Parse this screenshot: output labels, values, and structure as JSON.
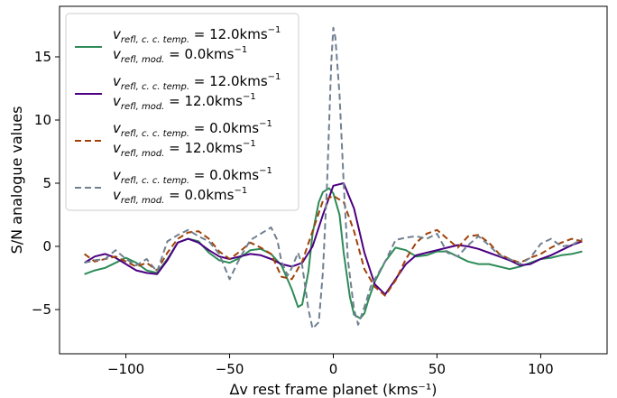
{
  "chart_data": {
    "type": "line",
    "title": "",
    "xlabel": "Δv rest frame planet (kms⁻¹)",
    "ylabel": "S/N analogue values",
    "xlim": [
      -132,
      132
    ],
    "ylim": [
      -8.5,
      19.0
    ],
    "xticks": [
      -100,
      -50,
      0,
      50,
      100
    ],
    "xtick_labels": [
      "−100",
      "−50",
      "0",
      "50",
      "100"
    ],
    "yticks": [
      -5,
      0,
      5,
      10,
      15
    ],
    "ytick_labels": [
      "−5",
      "0",
      "5",
      "10",
      "15"
    ],
    "grid": false,
    "legend_position": "top-left",
    "series": [
      {
        "name": "v_refl,c.c.temp. = 12.0kms⁻¹ / v_refl,mod. = 0.0kms⁻¹",
        "legend_line1": "v",
        "legend_line1_sub": "refl, c. c. temp.",
        "legend_line1_val": " = 12.0kms",
        "legend_line2_sub": "refl, mod.",
        "legend_line2_val": " = 0.0kms",
        "exp": "−1",
        "color": "#2e8b57",
        "dash": "solid",
        "x": [
          -120,
          -115,
          -110,
          -105,
          -100,
          -95,
          -90,
          -85,
          -80,
          -75,
          -70,
          -65,
          -60,
          -55,
          -50,
          -45,
          -40,
          -35,
          -30,
          -25,
          -20,
          -17,
          -15,
          -12,
          -10,
          -7,
          -5,
          -2,
          0,
          3,
          5,
          8,
          10,
          13,
          15,
          17,
          20,
          25,
          30,
          35,
          40,
          45,
          50,
          55,
          60,
          65,
          70,
          75,
          80,
          85,
          90,
          95,
          100,
          105,
          110,
          115,
          120
        ],
        "y": [
          -2.2,
          -1.9,
          -1.7,
          -1.3,
          -0.9,
          -1.3,
          -1.9,
          -2.1,
          -1.0,
          0.3,
          0.6,
          0.4,
          -0.5,
          -1.1,
          -1.3,
          -0.9,
          -0.3,
          -0.2,
          -0.6,
          -1.5,
          -3.4,
          -4.8,
          -4.6,
          -2.0,
          1.0,
          3.5,
          4.3,
          4.6,
          4.2,
          2.5,
          -0.5,
          -4.0,
          -5.4,
          -5.7,
          -5.3,
          -4.2,
          -2.8,
          -1.2,
          -0.1,
          -0.3,
          -0.8,
          -0.7,
          -0.4,
          -0.4,
          -0.8,
          -1.2,
          -1.4,
          -1.4,
          -1.6,
          -1.8,
          -1.6,
          -1.3,
          -1.0,
          -0.9,
          -0.7,
          -0.6,
          -0.4
        ]
      },
      {
        "name": "v_refl,c.c.temp. = 12.0kms⁻¹ / v_refl,mod. = 12.0kms⁻¹",
        "legend_line1": "v",
        "legend_line1_sub": "refl, c. c. temp.",
        "legend_line1_val": " = 12.0kms",
        "legend_line2_sub": "refl, mod.",
        "legend_line2_val": " = 12.0kms",
        "exp": "−1",
        "color": "#4b0082",
        "dash": "solid",
        "x": [
          -120,
          -115,
          -110,
          -105,
          -100,
          -95,
          -90,
          -85,
          -80,
          -75,
          -70,
          -65,
          -60,
          -55,
          -50,
          -45,
          -40,
          -35,
          -30,
          -25,
          -20,
          -15,
          -10,
          -5,
          0,
          5,
          10,
          15,
          20,
          25,
          30,
          35,
          40,
          45,
          50,
          55,
          60,
          65,
          70,
          75,
          80,
          85,
          90,
          95,
          100,
          105,
          110,
          115,
          120
        ],
        "y": [
          -1.3,
          -0.8,
          -0.6,
          -0.9,
          -1.4,
          -1.9,
          -2.1,
          -2.2,
          -1.1,
          0.3,
          0.6,
          0.3,
          -0.3,
          -0.8,
          -1.0,
          -0.8,
          -0.6,
          -0.7,
          -1.0,
          -1.4,
          -1.6,
          -1.3,
          0.0,
          2.5,
          4.8,
          5.0,
          3.0,
          -0.5,
          -3.0,
          -3.8,
          -2.6,
          -1.4,
          -0.7,
          -0.5,
          -0.3,
          -0.1,
          0.1,
          0.0,
          -0.2,
          -0.5,
          -0.8,
          -1.1,
          -1.5,
          -1.4,
          -1.0,
          -0.7,
          -0.3,
          0.1,
          0.4
        ]
      },
      {
        "name": "v_refl,c.c.temp. = 0.0kms⁻¹ / v_refl,mod. = 12.0kms⁻¹",
        "legend_line1": "v",
        "legend_line1_sub": "refl, c. c. temp.",
        "legend_line1_val": " = 0.0kms",
        "legend_line2_sub": "refl, mod.",
        "legend_line2_val": " = 12.0kms",
        "exp": "−1",
        "color": "#a0420a",
        "dash": "dashed",
        "x": [
          -120,
          -115,
          -110,
          -105,
          -100,
          -95,
          -90,
          -85,
          -80,
          -75,
          -70,
          -65,
          -60,
          -55,
          -50,
          -45,
          -40,
          -35,
          -30,
          -25,
          -20,
          -15,
          -10,
          -5,
          0,
          5,
          10,
          15,
          20,
          25,
          30,
          35,
          40,
          45,
          50,
          55,
          60,
          65,
          70,
          75,
          80,
          85,
          90,
          95,
          100,
          105,
          110,
          115,
          120
        ],
        "y": [
          -0.6,
          -1.2,
          -1.0,
          -0.8,
          -1.2,
          -1.6,
          -1.3,
          -1.9,
          -0.5,
          0.6,
          1.1,
          1.2,
          0.6,
          -0.4,
          -1.0,
          -0.4,
          0.3,
          -0.1,
          -0.6,
          -2.4,
          -2.6,
          -1.2,
          1.2,
          3.6,
          4.0,
          3.5,
          1.2,
          -1.8,
          -3.2,
          -3.9,
          -2.7,
          -1.0,
          0.3,
          1.0,
          1.3,
          0.6,
          -0.1,
          0.8,
          0.9,
          0.3,
          -0.6,
          -1.0,
          -1.3,
          -0.9,
          -0.6,
          -0.1,
          0.3,
          0.6,
          0.4
        ]
      },
      {
        "name": "v_refl,c.c.temp. = 0.0kms⁻¹ / v_refl,mod. = 0.0kms⁻¹",
        "legend_line1": "v",
        "legend_line1_sub": "refl, c. c. temp.",
        "legend_line1_val": " = 0.0kms",
        "legend_line2_sub": "refl, mod.",
        "legend_line2_val": " = 0.0kms",
        "exp": "−1",
        "color": "#708090",
        "dash": "dashed",
        "x": [
          -120,
          -115,
          -110,
          -105,
          -100,
          -95,
          -90,
          -85,
          -80,
          -75,
          -70,
          -65,
          -60,
          -55,
          -50,
          -45,
          -40,
          -35,
          -30,
          -27,
          -25,
          -22,
          -20,
          -17,
          -15,
          -12,
          -10,
          -7,
          -5,
          -3,
          -1,
          0,
          1,
          3,
          5,
          7,
          10,
          12,
          15,
          18,
          20,
          25,
          30,
          35,
          40,
          45,
          50,
          55,
          60,
          65,
          70,
          75,
          80,
          85,
          90,
          95,
          100,
          105,
          110,
          115,
          120
        ],
        "y": [
          -1.3,
          -1.1,
          -1.0,
          -0.3,
          -1.0,
          -1.5,
          -1.0,
          -2.0,
          0.4,
          0.9,
          1.3,
          0.8,
          0.4,
          -0.6,
          -2.6,
          -0.9,
          0.5,
          1.0,
          1.5,
          0.5,
          -1.2,
          -2.3,
          -1.7,
          -0.5,
          -1.5,
          -5.0,
          -6.5,
          -6.0,
          -2.0,
          5.0,
          14.5,
          17.3,
          16.5,
          12.0,
          5.0,
          -1.0,
          -5.0,
          -6.2,
          -4.8,
          -3.2,
          -2.6,
          -1.2,
          0.5,
          0.7,
          0.8,
          0.6,
          1.0,
          -0.5,
          -0.8,
          0.1,
          0.8,
          0.1,
          -0.7,
          -1.0,
          -1.4,
          -0.9,
          0.2,
          0.6,
          0.0,
          0.1,
          0.6
        ]
      }
    ]
  }
}
